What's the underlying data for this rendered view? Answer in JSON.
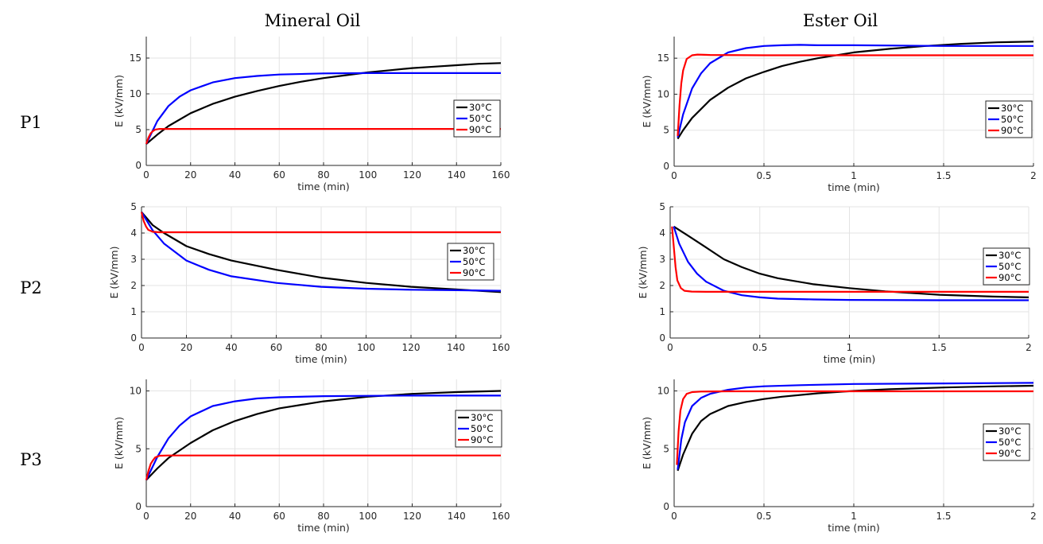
{
  "column_titles": [
    "Mineral Oil",
    "Ester Oil"
  ],
  "row_labels": [
    "P1",
    "P2",
    "P3"
  ],
  "colors": {
    "30°C": "#000000",
    "50°C": "#0000ff",
    "90°C": "#ff0000"
  },
  "chart_data": [
    {
      "type": "line",
      "oil": "Mineral Oil",
      "row": "P1",
      "xlabel": "time (min)",
      "ylabel": "E (kV/mm)",
      "xlim": [
        0,
        160
      ],
      "ylim": [
        0,
        18
      ],
      "xticks": [
        0,
        20,
        40,
        60,
        80,
        100,
        120,
        140,
        160
      ],
      "yticks": [
        0,
        5,
        10,
        15
      ],
      "grid": true,
      "legend_position": "right",
      "series": [
        {
          "name": "30°C",
          "x": [
            0,
            5,
            10,
            20,
            30,
            40,
            50,
            60,
            70,
            80,
            90,
            100,
            110,
            120,
            130,
            140,
            150,
            160
          ],
          "y": [
            3.0,
            4.3,
            5.5,
            7.3,
            8.6,
            9.6,
            10.4,
            11.1,
            11.7,
            12.2,
            12.6,
            13.0,
            13.3,
            13.6,
            13.8,
            14.0,
            14.2,
            14.3
          ]
        },
        {
          "name": "50°C",
          "x": [
            0,
            5,
            10,
            15,
            20,
            30,
            40,
            50,
            60,
            80,
            100,
            120,
            140,
            160
          ],
          "y": [
            3.0,
            6.2,
            8.3,
            9.6,
            10.5,
            11.6,
            12.2,
            12.5,
            12.7,
            12.85,
            12.9,
            12.9,
            12.9,
            12.9
          ]
        },
        {
          "name": "90°C",
          "x": [
            0,
            1,
            2,
            3,
            4,
            6,
            10,
            40,
            80,
            120,
            160
          ],
          "y": [
            3.0,
            3.9,
            4.5,
            4.8,
            5.0,
            5.1,
            5.1,
            5.1,
            5.1,
            5.1,
            5.1
          ]
        }
      ]
    },
    {
      "type": "line",
      "oil": "Ester Oil",
      "row": "P1",
      "xlabel": "time (min)",
      "ylabel": "E (kV/mm)",
      "xlim": [
        0,
        2
      ],
      "ylim": [
        0,
        18
      ],
      "xticks": [
        0,
        0.5,
        1,
        1.5,
        2
      ],
      "yticks": [
        0,
        5,
        10,
        15
      ],
      "grid": true,
      "legend_position": "right",
      "series": [
        {
          "name": "30°C",
          "x": [
            0.02,
            0.05,
            0.1,
            0.2,
            0.3,
            0.4,
            0.5,
            0.6,
            0.7,
            0.8,
            1.0,
            1.2,
            1.4,
            1.6,
            1.8,
            2.0
          ],
          "y": [
            3.8,
            5.0,
            6.7,
            9.2,
            10.9,
            12.2,
            13.1,
            13.9,
            14.5,
            15.0,
            15.8,
            16.3,
            16.7,
            17.0,
            17.2,
            17.3
          ]
        },
        {
          "name": "50°C",
          "x": [
            0.02,
            0.05,
            0.1,
            0.15,
            0.2,
            0.3,
            0.4,
            0.5,
            0.6,
            0.7,
            0.8,
            1.0,
            1.5,
            2.0
          ],
          "y": [
            4.0,
            7.2,
            10.8,
            12.9,
            14.3,
            15.8,
            16.4,
            16.7,
            16.8,
            16.85,
            16.8,
            16.8,
            16.7,
            16.7
          ]
        },
        {
          "name": "90°C",
          "x": [
            0.02,
            0.03,
            0.04,
            0.05,
            0.07,
            0.1,
            0.13,
            0.2,
            0.5,
            1.0,
            1.5,
            2.0
          ],
          "y": [
            4.2,
            8.5,
            11.5,
            13.3,
            14.9,
            15.4,
            15.5,
            15.45,
            15.4,
            15.4,
            15.4,
            15.4
          ]
        }
      ]
    },
    {
      "type": "line",
      "oil": "Mineral Oil",
      "row": "P2",
      "xlabel": "time (min)",
      "ylabel": "E (kV/mm)",
      "xlim": [
        0,
        160
      ],
      "ylim": [
        0,
        5
      ],
      "xticks": [
        0,
        20,
        40,
        60,
        80,
        100,
        120,
        140,
        160
      ],
      "yticks": [
        0,
        1,
        2,
        3,
        4,
        5
      ],
      "grid": true,
      "legend_position": "right",
      "series": [
        {
          "name": "30°C",
          "x": [
            0,
            5,
            10,
            20,
            30,
            40,
            60,
            80,
            100,
            120,
            140,
            160
          ],
          "y": [
            4.8,
            4.3,
            4.0,
            3.5,
            3.2,
            2.95,
            2.6,
            2.3,
            2.1,
            1.95,
            1.85,
            1.75
          ]
        },
        {
          "name": "50°C",
          "x": [
            0,
            5,
            10,
            20,
            30,
            40,
            60,
            80,
            100,
            120,
            140,
            160
          ],
          "y": [
            4.8,
            4.1,
            3.6,
            2.95,
            2.6,
            2.35,
            2.1,
            1.95,
            1.88,
            1.84,
            1.82,
            1.8
          ]
        },
        {
          "name": "90°C",
          "x": [
            0,
            1,
            2,
            3,
            5,
            8,
            20,
            60,
            100,
            160
          ],
          "y": [
            4.8,
            4.45,
            4.25,
            4.12,
            4.05,
            4.03,
            4.03,
            4.03,
            4.03,
            4.03
          ]
        }
      ]
    },
    {
      "type": "line",
      "oil": "Ester Oil",
      "row": "P2",
      "xlabel": "time (min)",
      "ylabel": "E (kV/mm)",
      "xlim": [
        0,
        2
      ],
      "ylim": [
        0,
        5
      ],
      "xticks": [
        0,
        0.5,
        1,
        1.5,
        2
      ],
      "yticks": [
        0,
        1,
        2,
        3,
        4,
        5
      ],
      "grid": true,
      "legend_position": "right",
      "series": [
        {
          "name": "30°C",
          "x": [
            0.02,
            0.1,
            0.2,
            0.3,
            0.4,
            0.5,
            0.6,
            0.8,
            1.0,
            1.2,
            1.5,
            1.8,
            2.0
          ],
          "y": [
            4.25,
            3.9,
            3.45,
            3.0,
            2.7,
            2.45,
            2.28,
            2.05,
            1.9,
            1.78,
            1.65,
            1.58,
            1.55
          ]
        },
        {
          "name": "50°C",
          "x": [
            0.02,
            0.05,
            0.1,
            0.15,
            0.2,
            0.3,
            0.4,
            0.5,
            0.6,
            0.8,
            1.0,
            1.5,
            2.0
          ],
          "y": [
            4.25,
            3.6,
            2.9,
            2.45,
            2.15,
            1.8,
            1.63,
            1.55,
            1.5,
            1.47,
            1.45,
            1.44,
            1.44
          ]
        },
        {
          "name": "90°C",
          "x": [
            0.01,
            0.02,
            0.03,
            0.04,
            0.06,
            0.08,
            0.12,
            0.2,
            0.5,
            1.0,
            1.5,
            2.0
          ],
          "y": [
            4.25,
            3.5,
            2.7,
            2.2,
            1.9,
            1.8,
            1.77,
            1.76,
            1.76,
            1.76,
            1.76,
            1.76
          ]
        }
      ]
    },
    {
      "type": "line",
      "oil": "Mineral Oil",
      "row": "P3",
      "xlabel": "time (min)",
      "ylabel": "E (kV/mm)",
      "xlim": [
        0,
        160
      ],
      "ylim": [
        0,
        11
      ],
      "xticks": [
        0,
        20,
        40,
        60,
        80,
        100,
        120,
        140,
        160
      ],
      "yticks": [
        0,
        5,
        10
      ],
      "grid": true,
      "legend_position": "right",
      "series": [
        {
          "name": "30°C",
          "x": [
            0,
            5,
            10,
            20,
            30,
            40,
            50,
            60,
            70,
            80,
            100,
            120,
            140,
            160
          ],
          "y": [
            2.3,
            3.3,
            4.2,
            5.5,
            6.6,
            7.4,
            8.0,
            8.5,
            8.8,
            9.1,
            9.5,
            9.75,
            9.9,
            10.0
          ]
        },
        {
          "name": "50°C",
          "x": [
            0,
            5,
            10,
            15,
            20,
            30,
            40,
            50,
            60,
            80,
            100,
            120,
            160
          ],
          "y": [
            2.3,
            4.3,
            5.9,
            7.0,
            7.8,
            8.7,
            9.1,
            9.35,
            9.45,
            9.55,
            9.58,
            9.6,
            9.6
          ]
        },
        {
          "name": "90°C",
          "x": [
            0,
            1,
            2,
            3,
            4,
            6,
            10,
            40,
            80,
            160
          ],
          "y": [
            2.3,
            3.1,
            3.7,
            4.0,
            4.25,
            4.4,
            4.42,
            4.42,
            4.42,
            4.42
          ]
        }
      ]
    },
    {
      "type": "line",
      "oil": "Ester Oil",
      "row": "P3",
      "xlabel": "time (min)",
      "ylabel": "E (kV/mm)",
      "xlim": [
        0,
        2
      ],
      "ylim": [
        0,
        11
      ],
      "xticks": [
        0,
        0.5,
        1,
        1.5,
        2
      ],
      "yticks": [
        0,
        5,
        10
      ],
      "grid": true,
      "legend_position": "right",
      "series": [
        {
          "name": "30°C",
          "x": [
            0.02,
            0.05,
            0.1,
            0.15,
            0.2,
            0.3,
            0.4,
            0.5,
            0.6,
            0.8,
            1.0,
            1.2,
            1.5,
            1.8,
            2.0
          ],
          "y": [
            3.1,
            4.5,
            6.3,
            7.4,
            8.0,
            8.7,
            9.05,
            9.3,
            9.5,
            9.8,
            10.0,
            10.15,
            10.3,
            10.4,
            10.45
          ]
        },
        {
          "name": "50°C",
          "x": [
            0.02,
            0.04,
            0.06,
            0.1,
            0.15,
            0.2,
            0.3,
            0.4,
            0.5,
            0.7,
            1.0,
            1.5,
            2.0
          ],
          "y": [
            3.2,
            5.8,
            7.3,
            8.7,
            9.4,
            9.75,
            10.1,
            10.3,
            10.4,
            10.5,
            10.6,
            10.65,
            10.7
          ]
        },
        {
          "name": "90°C",
          "x": [
            0.015,
            0.025,
            0.035,
            0.05,
            0.07,
            0.1,
            0.15,
            0.3,
            1.0,
            2.0
          ],
          "y": [
            3.6,
            6.5,
            8.3,
            9.3,
            9.75,
            9.9,
            9.95,
            9.97,
            9.97,
            9.97
          ]
        }
      ]
    }
  ]
}
